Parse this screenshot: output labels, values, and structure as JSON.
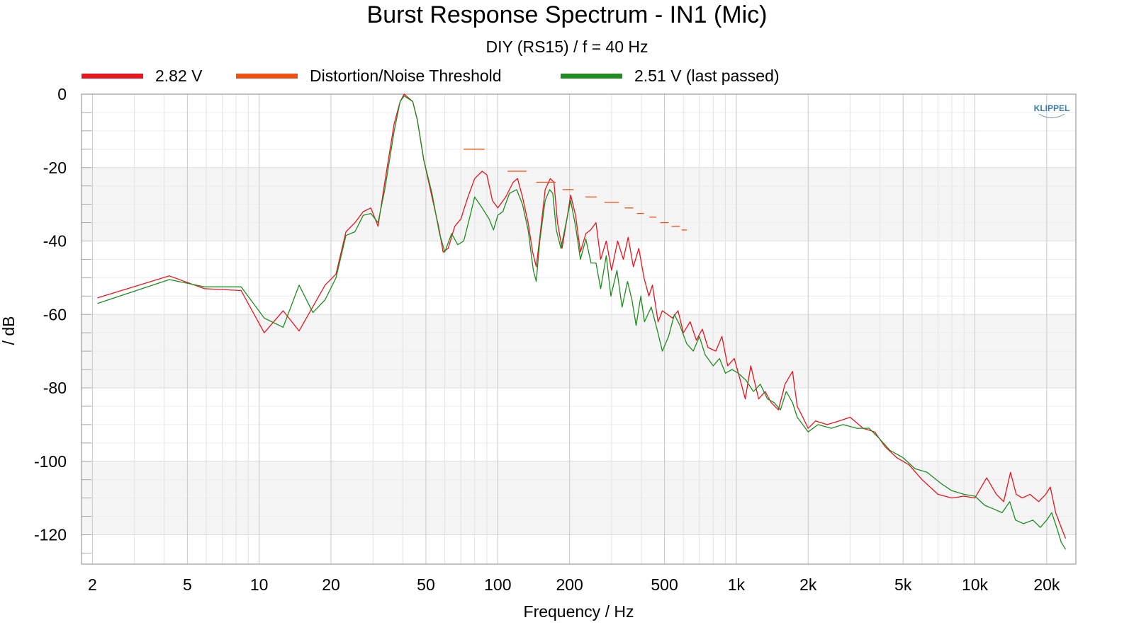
{
  "chart_data": {
    "type": "line",
    "title": "Burst Response Spectrum - IN1 (Mic)",
    "subtitle": "DIY (RS15) / f = 40 Hz",
    "xlabel": "Frequency / Hz",
    "ylabel": "/ dB",
    "x_scale": "log",
    "xlim": [
      1.8,
      26500
    ],
    "ylim": [
      -128,
      0
    ],
    "x_ticks": [
      {
        "value": 2,
        "label": "2"
      },
      {
        "value": 5,
        "label": "5"
      },
      {
        "value": 10,
        "label": "10"
      },
      {
        "value": 20,
        "label": "20"
      },
      {
        "value": 50,
        "label": "50"
      },
      {
        "value": 100,
        "label": "100"
      },
      {
        "value": 200,
        "label": "200"
      },
      {
        "value": 500,
        "label": "500"
      },
      {
        "value": 1000,
        "label": "1k"
      },
      {
        "value": 2000,
        "label": "2k"
      },
      {
        "value": 5000,
        "label": "5k"
      },
      {
        "value": 10000,
        "label": "10k"
      },
      {
        "value": 20000,
        "label": "20k"
      }
    ],
    "y_ticks": [
      {
        "value": 0,
        "label": "0"
      },
      {
        "value": -20,
        "label": "-20"
      },
      {
        "value": -40,
        "label": "-40"
      },
      {
        "value": -60,
        "label": "-60"
      },
      {
        "value": -80,
        "label": "-80"
      },
      {
        "value": -100,
        "label": "-100"
      },
      {
        "value": -120,
        "label": "-120"
      }
    ],
    "grid": true,
    "legend_position": "top",
    "series": [
      {
        "name": "2.82 V",
        "color": "#e8141e",
        "style": "line",
        "points": [
          [
            2.1,
            -55.5
          ],
          [
            4.2,
            -49.5
          ],
          [
            5.9,
            -53
          ],
          [
            8.4,
            -53.5
          ],
          [
            10.5,
            -65
          ],
          [
            12.6,
            -59
          ],
          [
            14.7,
            -64.5
          ],
          [
            18.9,
            -52
          ],
          [
            21,
            -49
          ],
          [
            23.1,
            -37.5
          ],
          [
            25.2,
            -35
          ],
          [
            27.3,
            -32
          ],
          [
            29.4,
            -31
          ],
          [
            31.5,
            -36
          ],
          [
            33.6,
            -24
          ],
          [
            36.8,
            -8
          ],
          [
            39,
            -2
          ],
          [
            40.5,
            0
          ],
          [
            44,
            -2
          ],
          [
            46,
            -7
          ],
          [
            49,
            -18
          ],
          [
            53,
            -28
          ],
          [
            56.5,
            -36
          ],
          [
            59,
            -43
          ],
          [
            62,
            -42
          ],
          [
            66,
            -36
          ],
          [
            70,
            -34
          ],
          [
            75,
            -28
          ],
          [
            80,
            -23
          ],
          [
            86,
            -21
          ],
          [
            90,
            -22
          ],
          [
            95,
            -29
          ],
          [
            100,
            -31
          ],
          [
            108,
            -28
          ],
          [
            116,
            -24
          ],
          [
            121,
            -23
          ],
          [
            127,
            -28
          ],
          [
            134,
            -35
          ],
          [
            140,
            -43
          ],
          [
            145,
            -47
          ],
          [
            150,
            -39
          ],
          [
            158,
            -26
          ],
          [
            166,
            -23
          ],
          [
            172,
            -24
          ],
          [
            178,
            -35
          ],
          [
            186,
            -42
          ],
          [
            195,
            -34
          ],
          [
            202,
            -27.5
          ],
          [
            212,
            -33
          ],
          [
            222,
            -43
          ],
          [
            234,
            -38
          ],
          [
            245,
            -37
          ],
          [
            258,
            -35
          ],
          [
            270,
            -45
          ],
          [
            285,
            -40
          ],
          [
            300,
            -48
          ],
          [
            318,
            -40
          ],
          [
            336,
            -45
          ],
          [
            352,
            -39
          ],
          [
            370,
            -47
          ],
          [
            390,
            -42
          ],
          [
            410,
            -50
          ],
          [
            430,
            -55
          ],
          [
            445,
            -52
          ],
          [
            470,
            -62
          ],
          [
            490,
            -59
          ],
          [
            515,
            -60
          ],
          [
            540,
            -61
          ],
          [
            570,
            -59
          ],
          [
            600,
            -65
          ],
          [
            640,
            -62
          ],
          [
            680,
            -67
          ],
          [
            720,
            -64
          ],
          [
            760,
            -69
          ],
          [
            820,
            -70
          ],
          [
            870,
            -66
          ],
          [
            920,
            -74
          ],
          [
            980,
            -72
          ],
          [
            1030,
            -77
          ],
          [
            1090,
            -83
          ],
          [
            1150,
            -74
          ],
          [
            1240,
            -83
          ],
          [
            1320,
            -81
          ],
          [
            1400,
            -84
          ],
          [
            1500,
            -86
          ],
          [
            1600,
            -79
          ],
          [
            1720,
            -75.5
          ],
          [
            1800,
            -85
          ],
          [
            1900,
            -88
          ],
          [
            2000,
            -91
          ],
          [
            2150,
            -89
          ],
          [
            2400,
            -90
          ],
          [
            2700,
            -89
          ],
          [
            3000,
            -88
          ],
          [
            3400,
            -91
          ],
          [
            3800,
            -92
          ],
          [
            4200,
            -96
          ],
          [
            4700,
            -99
          ],
          [
            5300,
            -101
          ],
          [
            6000,
            -105
          ],
          [
            7000,
            -109
          ],
          [
            8000,
            -110
          ],
          [
            9000,
            -109.5
          ],
          [
            10000,
            -110
          ],
          [
            11200,
            -104.5
          ],
          [
            12300,
            -109
          ],
          [
            13200,
            -111
          ],
          [
            14100,
            -103
          ],
          [
            14900,
            -109
          ],
          [
            15800,
            -110
          ],
          [
            17000,
            -109
          ],
          [
            18500,
            -111
          ],
          [
            19800,
            -109
          ],
          [
            20700,
            -107
          ],
          [
            21800,
            -114
          ],
          [
            23000,
            -118
          ],
          [
            24000,
            -121
          ]
        ]
      },
      {
        "name": "Distortion/Noise Threshold",
        "color": "#f05014",
        "style": "dashes",
        "segments": [
          [
            72,
            88,
            -15
          ],
          [
            110,
            132,
            -21
          ],
          [
            145,
            175,
            -24
          ],
          [
            187,
            208,
            -26
          ],
          [
            233,
            260,
            -28
          ],
          [
            280,
            322,
            -29.5
          ],
          [
            340,
            370,
            -31
          ],
          [
            383,
            410,
            -32.5
          ],
          [
            432,
            462,
            -33.5
          ],
          [
            480,
            520,
            -35
          ],
          [
            535,
            580,
            -36
          ],
          [
            590,
            620,
            -37
          ]
        ]
      },
      {
        "name": "2.51 V (last passed)",
        "color": "#1e8c1e",
        "style": "line",
        "points": [
          [
            2.1,
            -57
          ],
          [
            4.2,
            -50.5
          ],
          [
            5.9,
            -52.5
          ],
          [
            8.4,
            -52.5
          ],
          [
            10.5,
            -61
          ],
          [
            12.6,
            -63.5
          ],
          [
            14.7,
            -52
          ],
          [
            16.8,
            -59.5
          ],
          [
            18.9,
            -56
          ],
          [
            21,
            -50
          ],
          [
            23.1,
            -38.5
          ],
          [
            25.2,
            -37.5
          ],
          [
            27.3,
            -33
          ],
          [
            29.4,
            -32.5
          ],
          [
            31.5,
            -35
          ],
          [
            33.6,
            -26
          ],
          [
            36.8,
            -10
          ],
          [
            39,
            -2
          ],
          [
            40.5,
            -0.5
          ],
          [
            44,
            -2
          ],
          [
            46,
            -7
          ],
          [
            49,
            -18
          ],
          [
            53,
            -27
          ],
          [
            57,
            -38
          ],
          [
            60,
            -43
          ],
          [
            64,
            -38
          ],
          [
            68,
            -41
          ],
          [
            72,
            -40
          ],
          [
            76,
            -34
          ],
          [
            80,
            -28
          ],
          [
            86,
            -31
          ],
          [
            92,
            -34
          ],
          [
            96,
            -37
          ],
          [
            100,
            -33
          ],
          [
            105,
            -32
          ],
          [
            112,
            -27
          ],
          [
            120,
            -26
          ],
          [
            127,
            -30
          ],
          [
            134,
            -37
          ],
          [
            141,
            -48
          ],
          [
            145,
            -51
          ],
          [
            150,
            -40
          ],
          [
            158,
            -29
          ],
          [
            165,
            -26
          ],
          [
            170,
            -27
          ],
          [
            176,
            -37
          ],
          [
            184,
            -42
          ],
          [
            192,
            -36
          ],
          [
            202,
            -29
          ],
          [
            212,
            -36
          ],
          [
            222,
            -45
          ],
          [
            234,
            -39.5
          ],
          [
            246,
            -46
          ],
          [
            258,
            -46
          ],
          [
            270,
            -53
          ],
          [
            285,
            -44
          ],
          [
            298,
            -55
          ],
          [
            316,
            -48
          ],
          [
            332,
            -58
          ],
          [
            350,
            -51
          ],
          [
            365,
            -56
          ],
          [
            380,
            -63
          ],
          [
            398,
            -55
          ],
          [
            412,
            -62
          ],
          [
            440,
            -58
          ],
          [
            465,
            -64
          ],
          [
            490,
            -70
          ],
          [
            520,
            -66
          ],
          [
            550,
            -60
          ],
          [
            580,
            -63
          ],
          [
            620,
            -68
          ],
          [
            660,
            -70
          ],
          [
            700,
            -66
          ],
          [
            740,
            -71
          ],
          [
            800,
            -74
          ],
          [
            850,
            -72
          ],
          [
            900,
            -76
          ],
          [
            960,
            -75
          ],
          [
            1020,
            -76
          ],
          [
            1100,
            -78
          ],
          [
            1180,
            -81
          ],
          [
            1260,
            -79
          ],
          [
            1350,
            -83
          ],
          [
            1440,
            -84
          ],
          [
            1530,
            -86
          ],
          [
            1620,
            -81
          ],
          [
            1720,
            -84
          ],
          [
            1800,
            -88
          ],
          [
            1900,
            -90
          ],
          [
            2000,
            -92
          ],
          [
            2200,
            -90
          ],
          [
            2500,
            -91
          ],
          [
            2800,
            -90
          ],
          [
            3200,
            -91
          ],
          [
            3600,
            -91
          ],
          [
            4000,
            -94
          ],
          [
            4400,
            -97
          ],
          [
            5000,
            -99
          ],
          [
            5600,
            -102
          ],
          [
            6300,
            -103
          ],
          [
            7200,
            -106
          ],
          [
            8000,
            -108
          ],
          [
            9000,
            -109
          ],
          [
            10000,
            -109.5
          ],
          [
            11000,
            -112
          ],
          [
            12000,
            -113
          ],
          [
            13000,
            -114
          ],
          [
            14000,
            -111
          ],
          [
            14800,
            -116
          ],
          [
            16000,
            -117
          ],
          [
            17500,
            -116
          ],
          [
            18800,
            -118
          ],
          [
            20000,
            -116
          ],
          [
            21000,
            -114
          ],
          [
            22000,
            -118
          ],
          [
            23000,
            -122
          ],
          [
            24000,
            -124
          ]
        ]
      }
    ]
  },
  "legend": [
    {
      "label": "2.82 V",
      "color": "#e8141e"
    },
    {
      "label": "Distortion/Noise Threshold",
      "color": "#f05014"
    },
    {
      "label": "2.51 V (last passed)",
      "color": "#1e8c1e"
    }
  ],
  "logo_text": "KLIPPEL"
}
